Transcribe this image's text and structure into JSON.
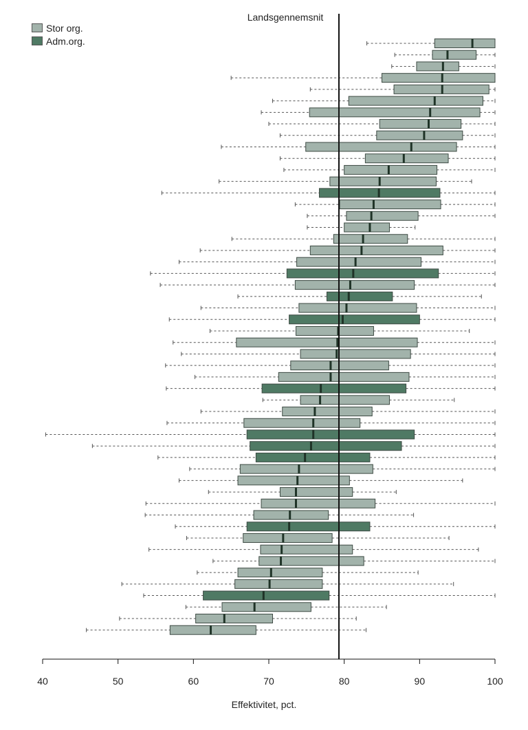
{
  "chart_data": {
    "type": "boxplot",
    "orientation": "horizontal",
    "xlabel": "Effektivitet, pct.",
    "xlim": [
      40,
      100
    ],
    "xticks": [
      40,
      50,
      60,
      70,
      80,
      90,
      100
    ],
    "reference_line": {
      "value": 79.3,
      "label": "Landsgennemsnit"
    },
    "legend": [
      {
        "name": "Stor org.",
        "color": "#a2b3ab"
      },
      {
        "name": "Adm.org.",
        "color": "#4f7a64"
      }
    ],
    "legend_position": "top-left",
    "series": [
      {
        "group": "Stor org.",
        "whisker_low": 83.0,
        "q1": 92.0,
        "median": 97.0,
        "q3": 100.0,
        "whisker_high": 100.0
      },
      {
        "group": "Stor org.",
        "whisker_low": 86.7,
        "q1": 91.7,
        "median": 93.7,
        "q3": 97.5,
        "whisker_high": 100.0
      },
      {
        "group": "Stor org.",
        "whisker_low": 86.3,
        "q1": 89.6,
        "median": 93.1,
        "q3": 95.2,
        "whisker_high": 100.0
      },
      {
        "group": "Stor org.",
        "whisker_low": 65.0,
        "q1": 85.0,
        "median": 93.0,
        "q3": 100.0,
        "whisker_high": 100.0
      },
      {
        "group": "Stor org.",
        "whisker_low": 75.5,
        "q1": 86.6,
        "median": 93.0,
        "q3": 99.2,
        "whisker_high": 100.0
      },
      {
        "group": "Stor org.",
        "whisker_low": 70.5,
        "q1": 80.6,
        "median": 92.0,
        "q3": 98.4,
        "whisker_high": 100.0
      },
      {
        "group": "Stor org.",
        "whisker_low": 69.0,
        "q1": 75.4,
        "median": 91.4,
        "q3": 98.0,
        "whisker_high": 100.0
      },
      {
        "group": "Stor org.",
        "whisker_low": 70.0,
        "q1": 84.7,
        "median": 91.2,
        "q3": 95.5,
        "whisker_high": 100.0
      },
      {
        "group": "Stor org.",
        "whisker_low": 71.5,
        "q1": 84.3,
        "median": 90.6,
        "q3": 95.7,
        "whisker_high": 100.0
      },
      {
        "group": "Stor org.",
        "whisker_low": 63.7,
        "q1": 74.9,
        "median": 88.9,
        "q3": 94.9,
        "whisker_high": 100.0
      },
      {
        "group": "Stor org.",
        "whisker_low": 71.5,
        "q1": 82.8,
        "median": 87.9,
        "q3": 93.8,
        "whisker_high": 100.0
      },
      {
        "group": "Stor org.",
        "whisker_low": 72.0,
        "q1": 80.0,
        "median": 85.9,
        "q3": 92.3,
        "whisker_high": 100.0
      },
      {
        "group": "Stor org.",
        "whisker_low": 63.4,
        "q1": 78.1,
        "median": 84.7,
        "q3": 92.2,
        "whisker_high": 96.9
      },
      {
        "group": "Adm.org.",
        "whisker_low": 55.8,
        "q1": 76.7,
        "median": 84.6,
        "q3": 92.7,
        "whisker_high": 100.0
      },
      {
        "group": "Stor org.",
        "whisker_low": 73.5,
        "q1": 79.4,
        "median": 83.9,
        "q3": 92.8,
        "whisker_high": 100.0
      },
      {
        "group": "Stor org.",
        "whisker_low": 75.1,
        "q1": 80.3,
        "median": 83.6,
        "q3": 89.8,
        "whisker_high": 100.0
      },
      {
        "group": "Stor org.",
        "whisker_low": 75.1,
        "q1": 80.0,
        "median": 83.4,
        "q3": 86.0,
        "whisker_high": 89.4
      },
      {
        "group": "Stor org.",
        "whisker_low": 65.1,
        "q1": 78.6,
        "median": 82.5,
        "q3": 88.4,
        "whisker_high": 100.0
      },
      {
        "group": "Stor org.",
        "whisker_low": 60.9,
        "q1": 75.5,
        "median": 82.3,
        "q3": 93.1,
        "whisker_high": 100.0
      },
      {
        "group": "Stor org.",
        "whisker_low": 58.1,
        "q1": 73.7,
        "median": 81.5,
        "q3": 90.2,
        "whisker_high": 100.0
      },
      {
        "group": "Adm.org.",
        "whisker_low": 54.3,
        "q1": 72.4,
        "median": 81.2,
        "q3": 92.5,
        "whisker_high": 100.0
      },
      {
        "group": "Stor org.",
        "whisker_low": 55.6,
        "q1": 73.5,
        "median": 80.8,
        "q3": 89.3,
        "whisker_high": 100.0
      },
      {
        "group": "Adm.org.",
        "whisker_low": 65.9,
        "q1": 77.7,
        "median": 80.6,
        "q3": 86.4,
        "whisker_high": 98.2
      },
      {
        "group": "Stor org.",
        "whisker_low": 61.0,
        "q1": 74.0,
        "median": 80.3,
        "q3": 89.6,
        "whisker_high": 100.0
      },
      {
        "group": "Adm.org.",
        "whisker_low": 56.8,
        "q1": 72.7,
        "median": 79.8,
        "q3": 90.0,
        "whisker_high": 100.0
      },
      {
        "group": "Stor org.",
        "whisker_low": 62.2,
        "q1": 73.6,
        "median": 79.2,
        "q3": 83.9,
        "whisker_high": 96.6
      },
      {
        "group": "Stor org.",
        "whisker_low": 57.3,
        "q1": 65.7,
        "median": 79.1,
        "q3": 89.7,
        "whisker_high": 100.0
      },
      {
        "group": "Stor org.",
        "whisker_low": 58.4,
        "q1": 74.2,
        "median": 79.0,
        "q3": 88.8,
        "whisker_high": 100.0
      },
      {
        "group": "Stor org.",
        "whisker_low": 56.3,
        "q1": 72.9,
        "median": 78.2,
        "q3": 85.9,
        "whisker_high": 100.0
      },
      {
        "group": "Stor org.",
        "whisker_low": 60.2,
        "q1": 71.3,
        "median": 78.2,
        "q3": 88.6,
        "whisker_high": 100.0
      },
      {
        "group": "Adm.org.",
        "whisker_low": 56.4,
        "q1": 69.1,
        "median": 76.9,
        "q3": 88.2,
        "whisker_high": 100.0
      },
      {
        "group": "Stor org.",
        "whisker_low": 69.2,
        "q1": 74.2,
        "median": 76.8,
        "q3": 86.0,
        "whisker_high": 94.6
      },
      {
        "group": "Stor org.",
        "whisker_low": 61.0,
        "q1": 71.8,
        "median": 76.1,
        "q3": 83.7,
        "whisker_high": 100.0
      },
      {
        "group": "Stor org.",
        "whisker_low": 56.5,
        "q1": 66.7,
        "median": 75.9,
        "q3": 82.1,
        "whisker_high": 100.0
      },
      {
        "group": "Adm.org.",
        "whisker_low": 40.4,
        "q1": 67.1,
        "median": 75.9,
        "q3": 89.3,
        "whisker_high": 100.0
      },
      {
        "group": "Adm.org.",
        "whisker_low": 46.6,
        "q1": 67.5,
        "median": 75.6,
        "q3": 87.6,
        "whisker_high": 100.0
      },
      {
        "group": "Adm.org.",
        "whisker_low": 55.3,
        "q1": 68.3,
        "median": 74.8,
        "q3": 83.4,
        "whisker_high": 100.0
      },
      {
        "group": "Stor org.",
        "whisker_low": 59.5,
        "q1": 66.2,
        "median": 74.0,
        "q3": 83.8,
        "whisker_high": 100.0
      },
      {
        "group": "Stor org.",
        "whisker_low": 58.1,
        "q1": 65.9,
        "median": 73.8,
        "q3": 80.7,
        "whisker_high": 95.7
      },
      {
        "group": "Stor org.",
        "whisker_low": 62.0,
        "q1": 71.5,
        "median": 73.6,
        "q3": 81.1,
        "whisker_high": 86.9
      },
      {
        "group": "Stor org.",
        "whisker_low": 53.7,
        "q1": 69.0,
        "median": 73.6,
        "q3": 84.1,
        "whisker_high": 100.0
      },
      {
        "group": "Stor org.",
        "whisker_low": 53.6,
        "q1": 68.0,
        "median": 72.8,
        "q3": 77.9,
        "whisker_high": 89.2
      },
      {
        "group": "Adm.org.",
        "whisker_low": 57.6,
        "q1": 67.1,
        "median": 72.7,
        "q3": 83.4,
        "whisker_high": 100.0
      },
      {
        "group": "Stor org.",
        "whisker_low": 59.1,
        "q1": 66.6,
        "median": 71.9,
        "q3": 78.4,
        "whisker_high": 93.9
      },
      {
        "group": "Stor org.",
        "whisker_low": 54.1,
        "q1": 68.9,
        "median": 71.7,
        "q3": 81.1,
        "whisker_high": 97.8
      },
      {
        "group": "Stor org.",
        "whisker_low": 62.6,
        "q1": 68.7,
        "median": 71.6,
        "q3": 82.6,
        "whisker_high": 100.0
      },
      {
        "group": "Stor org.",
        "whisker_low": 60.5,
        "q1": 65.9,
        "median": 70.3,
        "q3": 77.1,
        "whisker_high": 89.8
      },
      {
        "group": "Stor org.",
        "whisker_low": 50.5,
        "q1": 65.5,
        "median": 70.1,
        "q3": 77.1,
        "whisker_high": 94.5
      },
      {
        "group": "Adm.org.",
        "whisker_low": 53.4,
        "q1": 61.3,
        "median": 69.3,
        "q3": 78.0,
        "whisker_high": 100.0
      },
      {
        "group": "Stor org.",
        "whisker_low": 59.0,
        "q1": 63.8,
        "median": 68.1,
        "q3": 75.6,
        "whisker_high": 85.6
      },
      {
        "group": "Stor org.",
        "whisker_low": 50.2,
        "q1": 60.3,
        "median": 64.1,
        "q3": 70.5,
        "whisker_high": 81.6
      },
      {
        "group": "Stor org.",
        "whisker_low": 45.8,
        "q1": 56.9,
        "median": 62.3,
        "q3": 68.3,
        "whisker_high": 82.9
      }
    ]
  }
}
